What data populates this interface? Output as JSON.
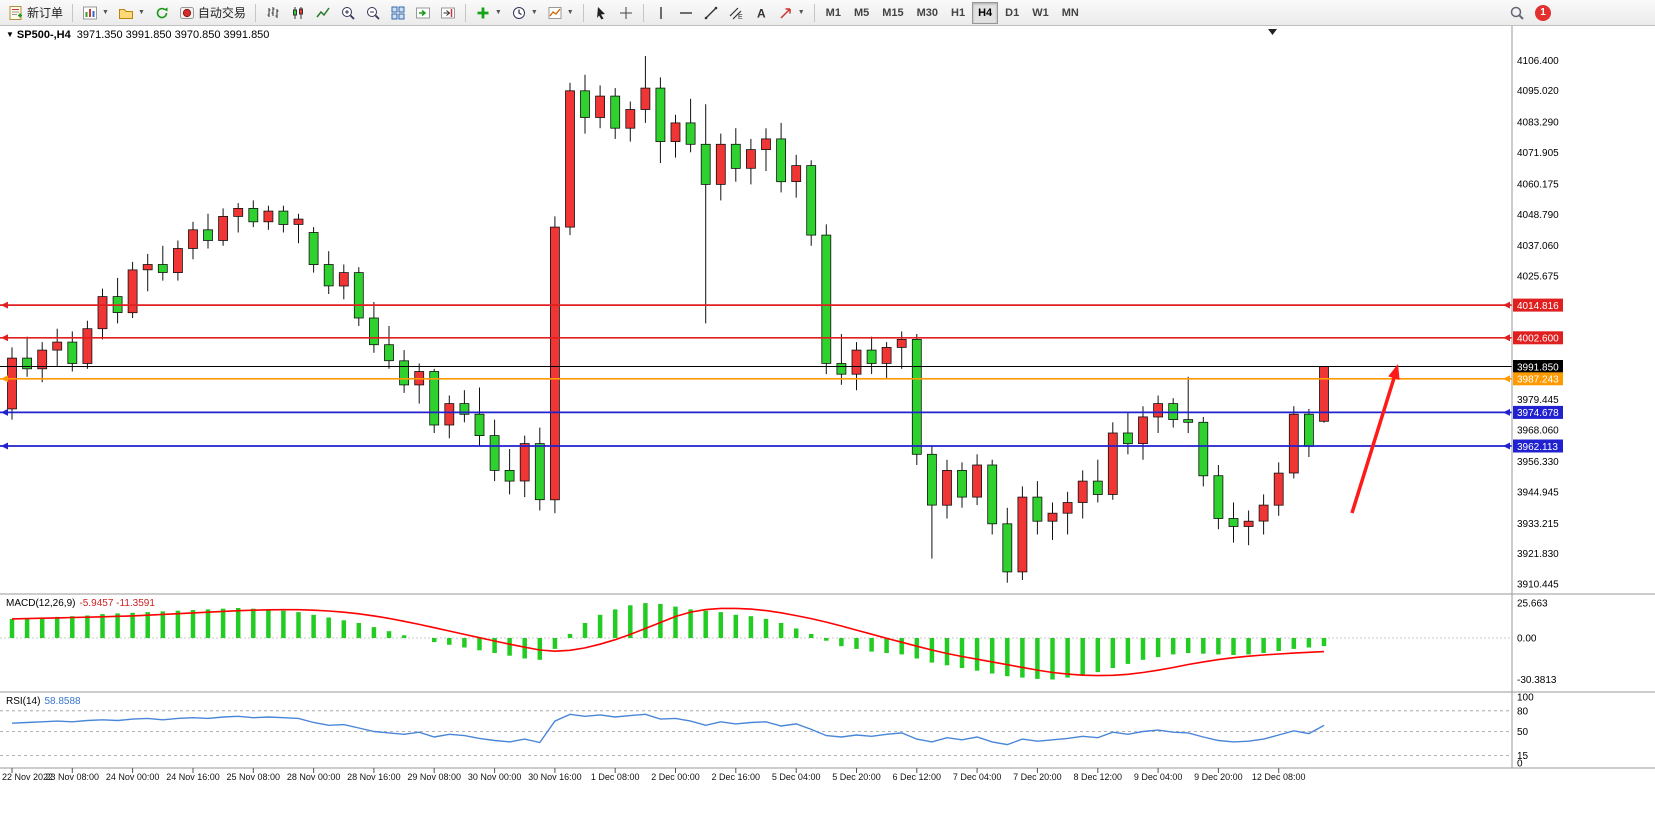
{
  "toolbar": {
    "new_order": "新订单",
    "auto_trading": "自动交易",
    "timeframes": [
      "M1",
      "M5",
      "M15",
      "M30",
      "H1",
      "H4",
      "D1",
      "W1",
      "MN"
    ],
    "active_timeframe": "H4",
    "notification_badge": "1"
  },
  "chart": {
    "header": {
      "symbol_marker": "▼",
      "symbol_period": "SP500-,H4",
      "ohlc": "3971.350 3991.850 3970.850 3991.850"
    },
    "indicators": {
      "macd_label": "MACD(12,26,9)",
      "macd_values": "-5.9457 -11.3591",
      "rsi_label": "RSI(14)",
      "rsi_value": "58.8588"
    },
    "colors": {
      "bull": "#f03535",
      "bear": "#2ed12e",
      "wick": "#111111",
      "macd_hist": "#22cc22",
      "macd_signal": "#ff0000",
      "rsi_line": "#4a86d8"
    },
    "price_axis": {
      "plain_ticks": [
        "4106.400",
        "4095.020",
        "4083.290",
        "4071.905",
        "4060.175",
        "4048.790",
        "4037.060",
        "4025.675",
        "3979.445",
        "3968.060",
        "3956.330",
        "3944.945",
        "3933.215",
        "3921.830",
        "3910.445"
      ],
      "price_tags": [
        {
          "text": "4014.816",
          "color": "#e02020"
        },
        {
          "text": "4002.600",
          "color": "#e02020"
        },
        {
          "text": "3991.850",
          "color": "#000000"
        },
        {
          "text": "3987.243",
          "color": "#ff9a00"
        },
        {
          "text": "3974.678",
          "color": "#2121cf"
        },
        {
          "text": "3962.113",
          "color": "#2121cf"
        }
      ],
      "macd_ticks": [
        "25.663",
        "0.00",
        "-30.3813"
      ],
      "rsi_ticks": [
        "100",
        "80",
        "50",
        "15",
        "0"
      ]
    }
  },
  "annotation": {
    "arrow_color": "#ff1a1a"
  },
  "chart_data": {
    "type": "candlestick",
    "symbol": "SP500-",
    "timeframe": "H4",
    "ylim": [
      3909,
      4114
    ],
    "candles": [
      [
        3976,
        3999,
        3972,
        3995
      ],
      [
        3995,
        4003,
        3988,
        3991
      ],
      [
        3991,
        4001,
        3986,
        3998
      ],
      [
        3998,
        4006,
        3992,
        4001
      ],
      [
        4001,
        4005,
        3990,
        3993
      ],
      [
        3993,
        4009,
        3991,
        4006
      ],
      [
        4006,
        4021,
        4002,
        4018
      ],
      [
        4018,
        4025,
        4008,
        4012
      ],
      [
        4012,
        4031,
        4010,
        4028
      ],
      [
        4028,
        4034,
        4020,
        4030
      ],
      [
        4030,
        4037,
        4024,
        4027
      ],
      [
        4027,
        4039,
        4024,
        4036
      ],
      [
        4036,
        4046,
        4032,
        4043
      ],
      [
        4043,
        4049,
        4036,
        4039
      ],
      [
        4039,
        4051,
        4037,
        4048
      ],
      [
        4048,
        4053,
        4042,
        4051
      ],
      [
        4051,
        4054,
        4044,
        4046
      ],
      [
        4046,
        4052,
        4043,
        4050
      ],
      [
        4050,
        4052,
        4042,
        4045
      ],
      [
        4045,
        4049,
        4038,
        4047
      ],
      [
        4042,
        4044,
        4027,
        4030
      ],
      [
        4030,
        4035,
        4019,
        4022
      ],
      [
        4022,
        4030,
        4017,
        4027
      ],
      [
        4027,
        4029,
        4007,
        4010
      ],
      [
        4010,
        4016,
        3997,
        4000
      ],
      [
        4000,
        4007,
        3991,
        3994
      ],
      [
        3994,
        3998,
        3982,
        3985
      ],
      [
        3985,
        3993,
        3978,
        3990
      ],
      [
        3990,
        3991,
        3967,
        3970
      ],
      [
        3970,
        3981,
        3965,
        3978
      ],
      [
        3978,
        3983,
        3971,
        3974
      ],
      [
        3974,
        3984,
        3962,
        3966
      ],
      [
        3966,
        3972,
        3949,
        3953
      ],
      [
        3953,
        3961,
        3944,
        3949
      ],
      [
        3949,
        3966,
        3943,
        3963
      ],
      [
        3963,
        3969,
        3938,
        3942
      ],
      [
        3942,
        4048,
        3937,
        4044
      ],
      [
        4044,
        4098,
        4041,
        4095
      ],
      [
        4095,
        4101,
        4079,
        4085
      ],
      [
        4085,
        4097,
        4081,
        4093
      ],
      [
        4093,
        4096,
        4077,
        4081
      ],
      [
        4081,
        4091,
        4076,
        4088
      ],
      [
        4088,
        4108,
        4083,
        4096
      ],
      [
        4096,
        4100,
        4068,
        4076
      ],
      [
        4076,
        4086,
        4070,
        4083
      ],
      [
        4083,
        4092,
        4072,
        4075
      ],
      [
        4075,
        4090,
        4008,
        4060
      ],
      [
        4060,
        4079,
        4054,
        4075
      ],
      [
        4075,
        4081,
        4061,
        4066
      ],
      [
        4066,
        4077,
        4060,
        4073
      ],
      [
        4073,
        4081,
        4065,
        4077
      ],
      [
        4077,
        4083,
        4057,
        4061
      ],
      [
        4061,
        4071,
        4055,
        4067
      ],
      [
        4067,
        4069,
        4037,
        4041
      ],
      [
        4041,
        4045,
        3989,
        3993
      ],
      [
        3993,
        4004,
        3985,
        3989
      ],
      [
        3989,
        4001,
        3983,
        3998
      ],
      [
        3998,
        4003,
        3989,
        3993
      ],
      [
        3993,
        4001,
        3987,
        3999
      ],
      [
        3999,
        4005,
        3991,
        4002
      ],
      [
        4002,
        4004,
        3955,
        3959
      ],
      [
        3959,
        3962,
        3920,
        3940
      ],
      [
        3940,
        3957,
        3935,
        3953
      ],
      [
        3953,
        3956,
        3939,
        3943
      ],
      [
        3943,
        3959,
        3940,
        3955
      ],
      [
        3955,
        3957,
        3929,
        3933
      ],
      [
        3933,
        3939,
        3911,
        3915
      ],
      [
        3915,
        3947,
        3912,
        3943
      ],
      [
        3943,
        3949,
        3929,
        3934
      ],
      [
        3934,
        3941,
        3927,
        3937
      ],
      [
        3937,
        3945,
        3929,
        3941
      ],
      [
        3941,
        3953,
        3935,
        3949
      ],
      [
        3949,
        3957,
        3941,
        3944
      ],
      [
        3944,
        3971,
        3942,
        3967
      ],
      [
        3967,
        3975,
        3959,
        3963
      ],
      [
        3963,
        3977,
        3957,
        3973
      ],
      [
        3973,
        3981,
        3967,
        3978
      ],
      [
        3978,
        3980,
        3969,
        3972
      ],
      [
        3972,
        3988,
        3967,
        3971
      ],
      [
        3971,
        3973,
        3947,
        3951
      ],
      [
        3951,
        3955,
        3931,
        3935
      ],
      [
        3935,
        3941,
        3926,
        3932
      ],
      [
        3932,
        3938,
        3925,
        3934
      ],
      [
        3934,
        3944,
        3929,
        3940
      ],
      [
        3940,
        3956,
        3936,
        3952
      ],
      [
        3952,
        3977,
        3950,
        3974
      ],
      [
        3974,
        3976,
        3958,
        3962
      ],
      [
        3971.35,
        3991.85,
        3970.85,
        3991.85
      ]
    ],
    "x_labels": [
      "22 Nov 2022",
      "23 Nov 08:00",
      "24 Nov 00:00",
      "24 Nov 16:00",
      "25 Nov 08:00",
      "28 Nov 00:00",
      "28 Nov 16:00",
      "29 Nov 08:00",
      "30 Nov 00:00",
      "30 Nov 16:00",
      "1 Dec 08:00",
      "2 Dec 00:00",
      "2 Dec 16:00",
      "5 Dec 04:00",
      "5 Dec 20:00",
      "6 Dec 12:00",
      "7 Dec 04:00",
      "7 Dec 20:00",
      "8 Dec 12:00",
      "9 Dec 04:00",
      "9 Dec 20:00",
      "12 Dec 08:00"
    ],
    "macd": {
      "name": "MACD(12,26,9)",
      "ylim": [
        -37.4,
        30.4
      ],
      "signal_period": 9,
      "values": [
        14,
        14.5,
        15,
        15.5,
        16,
        16.5,
        17.5,
        18,
        18.5,
        19,
        19.5,
        20,
        20.5,
        21,
        21.5,
        22,
        21.5,
        21,
        20,
        19,
        17,
        15,
        13,
        11,
        8,
        5,
        2,
        0,
        -3,
        -5,
        -7,
        -9,
        -11,
        -13,
        -15,
        -16,
        -8,
        3,
        11,
        17,
        21,
        24,
        25.6,
        25,
        23,
        21,
        20,
        19,
        17,
        16,
        14,
        11,
        7,
        3,
        -2,
        -6,
        -8,
        -10,
        -11,
        -12,
        -15,
        -18,
        -20,
        -22,
        -24,
        -26,
        -28,
        -29,
        -30,
        -30.4,
        -29,
        -27,
        -25,
        -22,
        -19,
        -16,
        -14,
        -12,
        -11,
        -11.5,
        -12,
        -12.5,
        -12,
        -11,
        -9.5,
        -8,
        -7,
        -5.9457
      ]
    },
    "rsi": {
      "name": "RSI(14)",
      "ylim": [
        0,
        100
      ],
      "levels": [
        80,
        50,
        15
      ],
      "values": [
        62,
        63,
        64,
        65,
        64,
        66,
        67,
        66,
        68,
        69,
        67,
        69,
        70,
        69,
        71,
        72,
        70,
        71,
        70,
        69,
        63,
        59,
        60,
        55,
        50,
        48,
        46,
        49,
        42,
        46,
        44,
        40,
        37,
        35,
        39,
        34,
        65,
        75,
        72,
        74,
        71,
        73,
        75,
        68,
        69,
        65,
        59,
        64,
        61,
        63,
        64,
        58,
        61,
        53,
        44,
        42,
        45,
        43,
        46,
        48,
        39,
        35,
        41,
        38,
        42,
        35,
        31,
        39,
        36,
        38,
        40,
        43,
        41,
        49,
        46,
        50,
        52,
        49,
        48,
        42,
        37,
        35,
        36,
        39,
        45,
        51,
        47,
        58.8588
      ]
    }
  }
}
